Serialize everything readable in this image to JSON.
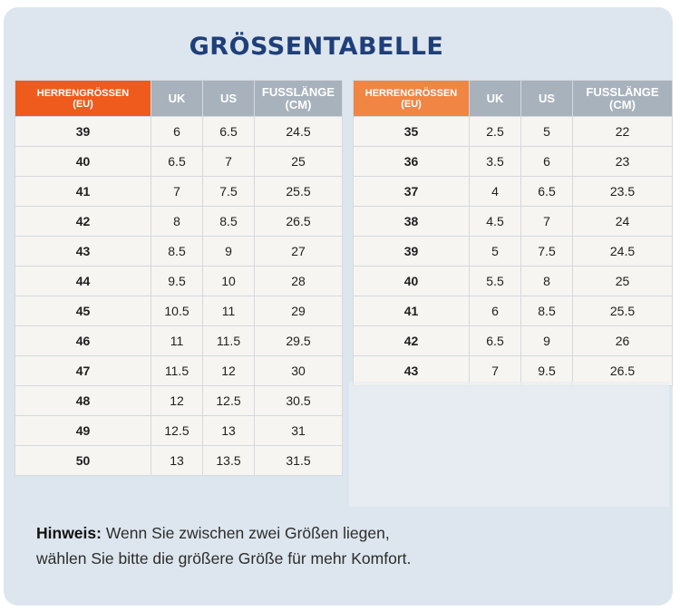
{
  "title": "GRÖSSENTABELLE",
  "men_table": {
    "headers": {
      "eu_line1": "HERRENGRÖSSEN",
      "eu_line2": "(EU)",
      "uk": "UK",
      "us": "US",
      "foot_line1": "FUSSLÄNGE",
      "foot_line2": "(CM)"
    },
    "rows": [
      [
        "39",
        "6",
        "6.5",
        "24.5"
      ],
      [
        "40",
        "6.5",
        "7",
        "25"
      ],
      [
        "41",
        "7",
        "7.5",
        "25.5"
      ],
      [
        "42",
        "8",
        "8.5",
        "26.5"
      ],
      [
        "43",
        "8.5",
        "9",
        "27"
      ],
      [
        "44",
        "9.5",
        "10",
        "28"
      ],
      [
        "45",
        "10.5",
        "11",
        "29"
      ],
      [
        "46",
        "11",
        "11.5",
        "29.5"
      ],
      [
        "47",
        "11.5",
        "12",
        "30"
      ],
      [
        "48",
        "12",
        "12.5",
        "30.5"
      ],
      [
        "49",
        "12.5",
        "13",
        "31"
      ],
      [
        "50",
        "13",
        "13.5",
        "31.5"
      ]
    ]
  },
  "women_table": {
    "headers": {
      "eu_line1": "HERRENGRÖSSEN",
      "eu_line2": "(EU)",
      "uk": "UK",
      "us": "US",
      "foot_line1": "FUSSLÄNGE",
      "foot_line2": "(CM)"
    },
    "rows": [
      [
        "35",
        "2.5",
        "5",
        "22"
      ],
      [
        "36",
        "3.5",
        "6",
        "23"
      ],
      [
        "37",
        "4",
        "6.5",
        "23.5"
      ],
      [
        "38",
        "4.5",
        "7",
        "24"
      ],
      [
        "39",
        "5",
        "7.5",
        "24.5"
      ],
      [
        "40",
        "5.5",
        "8",
        "25"
      ],
      [
        "41",
        "6",
        "8.5",
        "25.5"
      ],
      [
        "42",
        "6.5",
        "9",
        "26"
      ],
      [
        "43",
        "7",
        "9.5",
        "26.5"
      ]
    ]
  },
  "note": {
    "label": "Hinweis:",
    "line1": " Wenn Sie zwischen zwei Größen liegen,",
    "line2": "wählen Sie bitte die größere Größe für mehr Komfort."
  },
  "colors": {
    "title": "#1f3f7a",
    "header_eu_men": "#ef5b1c",
    "header_eu_women": "#f08544",
    "header_gray": "#a8b2bc",
    "card_bg": "#dde6ee"
  }
}
